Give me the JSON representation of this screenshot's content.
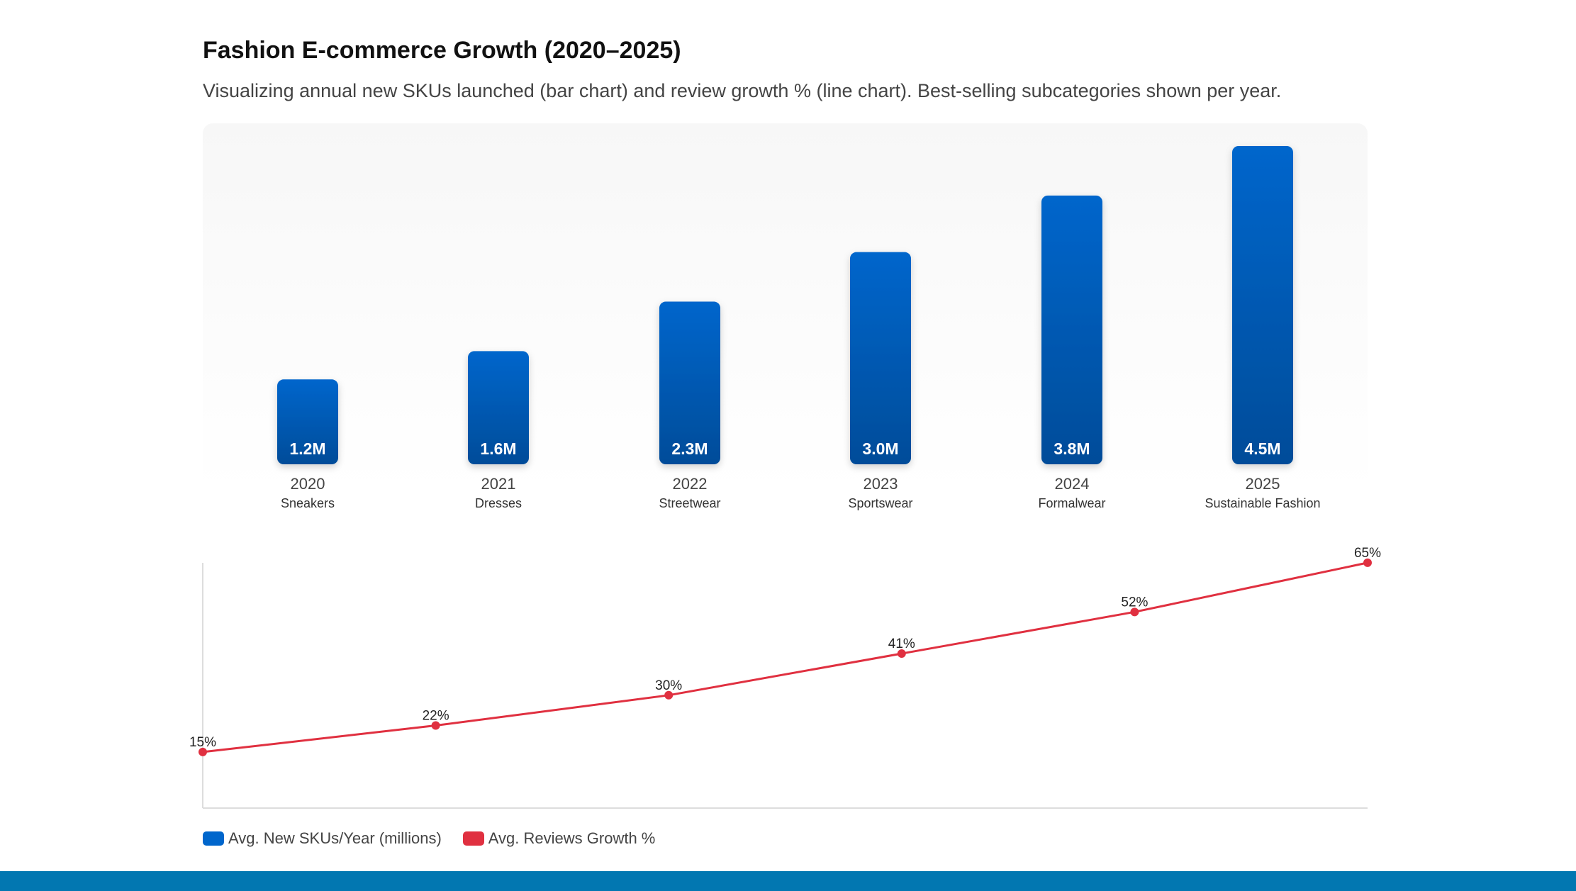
{
  "title": "Fashion E-commerce Growth (2020–2025)",
  "subtitle": "Visualizing annual new SKUs launched (bar chart) and review growth % (line chart). Best-selling subcategories shown per year.",
  "colors": {
    "bar_top": "#0066cc",
    "bar_bottom": "#004c99",
    "line": "#e03040",
    "footer": "#0277b1"
  },
  "chart_data": [
    {
      "type": "bar",
      "categories": [
        "2020",
        "2021",
        "2022",
        "2023",
        "2024",
        "2025"
      ],
      "subcategories": [
        "Sneakers",
        "Dresses",
        "Streetwear",
        "Sportswear",
        "Formalwear",
        "Sustainable Fashion"
      ],
      "values": [
        1.2,
        1.6,
        2.3,
        3.0,
        3.8,
        4.5
      ],
      "data_labels": [
        "1.2M",
        "1.6M",
        "2.3M",
        "3.0M",
        "3.8M",
        "4.5M"
      ],
      "series_name": "Avg. New SKUs/Year (millions)",
      "ylim": [
        0,
        4.5
      ],
      "grid": false
    },
    {
      "type": "line",
      "x": [
        "2020",
        "2021",
        "2022",
        "2023",
        "2024",
        "2025"
      ],
      "values": [
        15,
        22,
        30,
        41,
        52,
        65
      ],
      "data_labels": [
        "15%",
        "22%",
        "30%",
        "41%",
        "52%",
        "65%"
      ],
      "series_name": "Avg. Reviews Growth %",
      "ylim": [
        0,
        65
      ],
      "grid": false
    }
  ],
  "legend": {
    "placement": "bottom-left",
    "items": [
      {
        "label": "Avg. New SKUs/Year (millions)",
        "color": "#0066cc"
      },
      {
        "label": "Avg. Reviews Growth %",
        "color": "#e03040"
      }
    ]
  }
}
